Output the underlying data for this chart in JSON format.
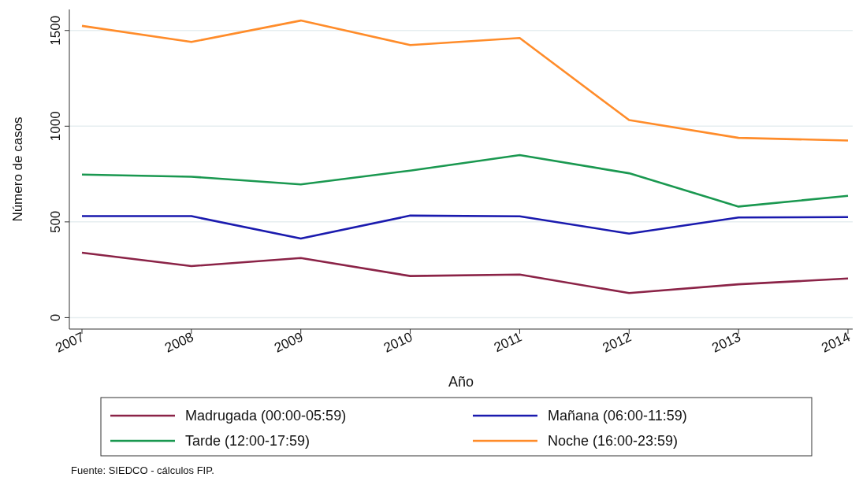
{
  "chart_data": {
    "type": "line",
    "xlabel": "Año",
    "ylabel": "Número de casos",
    "categories": [
      "2007",
      "2008",
      "2009",
      "2010",
      "2011",
      "2012",
      "2013",
      "2014"
    ],
    "series": [
      {
        "name": "Madrugada (00:00-05:59)",
        "color": "#8b2347",
        "values": [
          339,
          269,
          311,
          217,
          225,
          128,
          174,
          204
        ]
      },
      {
        "name": "Mañana (06:00-11:59)",
        "color": "#1a1aae",
        "values": [
          530,
          530,
          413,
          533,
          529,
          439,
          523,
          525
        ]
      },
      {
        "name": "Tarde (12:00-17:59)",
        "color": "#1a9850",
        "values": [
          747,
          736,
          696,
          768,
          849,
          754,
          580,
          636
        ]
      },
      {
        "name": "Noche (16:00-23:59)",
        "color": "#ff8c2a",
        "values": [
          1524,
          1440,
          1552,
          1424,
          1461,
          1032,
          939,
          925
        ]
      }
    ],
    "ylim": [
      -60,
      1610
    ],
    "yticks": [
      0,
      500,
      1000,
      1500
    ],
    "grid": "y",
    "legend": "bottom",
    "line_style": "solid",
    "marker": "none",
    "annotations": [
      "Fuente: SIEDCO - cálculos FIP."
    ]
  }
}
